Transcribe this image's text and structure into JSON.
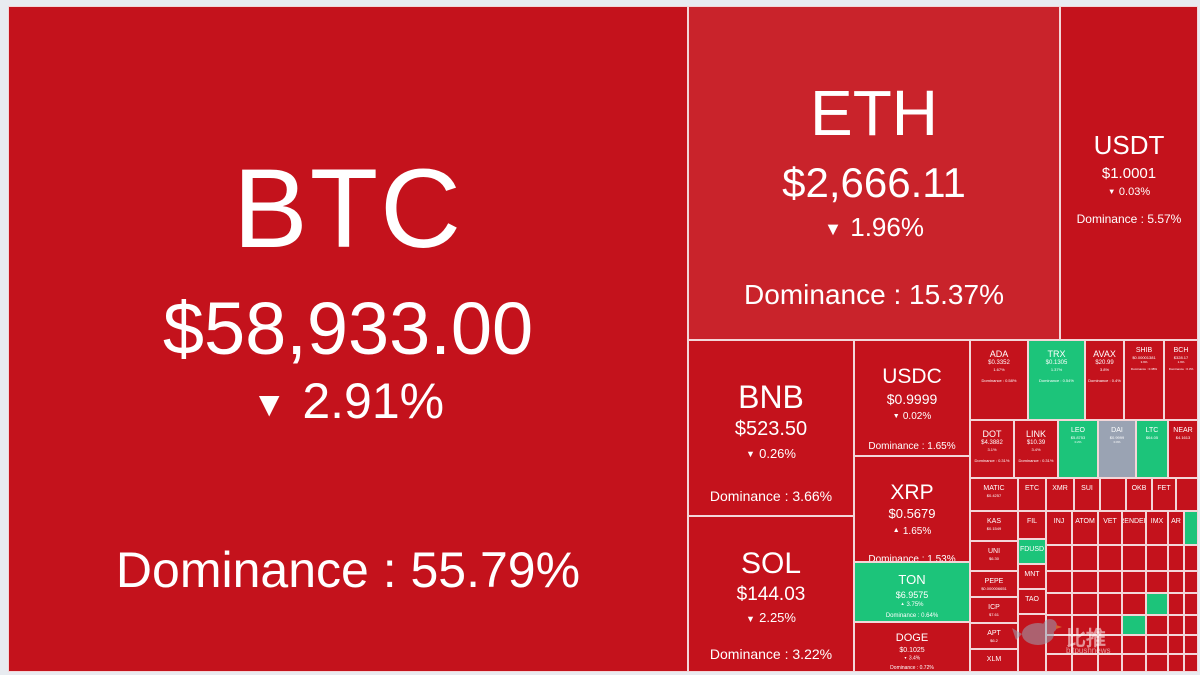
{
  "colors": {
    "down": "#c4121c",
    "up": "#1cc47a",
    "neutral": "#9aa3b3"
  },
  "arrow_down": "▼",
  "arrow_up": "▲",
  "coins": {
    "btc": {
      "symbol": "BTC",
      "price": "$58,933.00",
      "change": "2.91%",
      "dominance": "Dominance : 55.79%"
    },
    "eth": {
      "symbol": "ETH",
      "price": "$2,666.11",
      "change": "1.96%",
      "dominance": "Dominance : 15.37%"
    },
    "usdt": {
      "symbol": "USDT",
      "price": "$1.0001",
      "change": "0.03%",
      "dominance": "Dominance : 5.57%"
    },
    "bnb": {
      "symbol": "BNB",
      "price": "$523.50",
      "change": "0.26%",
      "dominance": "Dominance : 3.66%"
    },
    "sol": {
      "symbol": "SOL",
      "price": "$144.03",
      "change": "2.25%",
      "dominance": "Dominance : 3.22%"
    },
    "usdc": {
      "symbol": "USDC",
      "price": "$0.9999",
      "change": "0.02%",
      "dominance": "Dominance : 1.65%"
    },
    "xrp": {
      "symbol": "XRP",
      "price": "$0.5679",
      "change": "1.65%",
      "dominance": "Dominance : 1.53%"
    },
    "ton": {
      "symbol": "TON",
      "price": "$6.9575",
      "change": "3.75%",
      "dominance": "Dominance : 0.64%"
    },
    "doge": {
      "symbol": "DOGE",
      "price": "$0.1025",
      "change": "3.4%",
      "dominance": "Dominance : 0.72%"
    },
    "ada": {
      "symbol": "ADA",
      "price": "$0.3352",
      "change": "1.67%",
      "dominance": "Dominance : 0.58%"
    },
    "trx": {
      "symbol": "TRX",
      "price": "$0.1305",
      "change": "1.37%",
      "dominance": "Dominance : 0.54%"
    },
    "avax": {
      "symbol": "AVAX",
      "price": "$20.99",
      "change": "3.8%",
      "dominance": "Dominance : 0.4%"
    },
    "shib": {
      "symbol": "SHIB",
      "price": "$0.00001381",
      "change": "3.9%",
      "dominance": "Dominance : 0.38%"
    },
    "bch": {
      "symbol": "BCH",
      "price": "$328.17",
      "change": "1.9%",
      "dominance": "Dominance : 0.3%"
    },
    "dot": {
      "symbol": "DOT",
      "price": "$4.3882",
      "change": "3.1%",
      "dominance": "Dominance : 0.31%"
    },
    "link": {
      "symbol": "LINK",
      "price": "$10.39",
      "change": "3.4%",
      "dominance": "Dominance : 0.31%"
    },
    "leo": {
      "symbol": "LEO",
      "price": "$5.8753",
      "change": "0.2%"
    },
    "dai": {
      "symbol": "DAI",
      "price": "$0.9999",
      "change": "0.0%"
    },
    "ltc": {
      "symbol": "LTC",
      "price": "$64.05"
    },
    "near": {
      "symbol": "NEAR",
      "price": "$4.1613"
    },
    "matic": {
      "symbol": "MATIC",
      "price": "$0.4257"
    },
    "etc": {
      "symbol": "ETC"
    },
    "xmr": {
      "symbol": "XMR"
    },
    "sui": {
      "symbol": "SUI"
    },
    "okb": {
      "symbol": "OKB"
    },
    "fet": {
      "symbol": "FET"
    },
    "kas": {
      "symbol": "KAS",
      "price": "$0.1549"
    },
    "uni": {
      "symbol": "UNI",
      "price": "$6.30"
    },
    "pepe": {
      "symbol": "PEPE",
      "price": "$0.000006651"
    },
    "icp": {
      "symbol": "ICP",
      "price": "$7.61"
    },
    "apt": {
      "symbol": "APT",
      "price": "$6.2"
    },
    "xlm": {
      "symbol": "XLM"
    },
    "fil": {
      "symbol": "FIL"
    },
    "fdusd": {
      "symbol": "FDUSD"
    },
    "mnt": {
      "symbol": "MNT"
    },
    "tao": {
      "symbol": "TAO"
    },
    "inj": {
      "symbol": "INJ"
    },
    "atom": {
      "symbol": "ATOM"
    },
    "vet": {
      "symbol": "VET"
    },
    "render": {
      "symbol": "RENDER"
    },
    "imx": {
      "symbol": "IMX"
    },
    "ar": {
      "symbol": "AR"
    }
  },
  "watermark": {
    "text": "比推",
    "sub": "bitpushnews"
  }
}
